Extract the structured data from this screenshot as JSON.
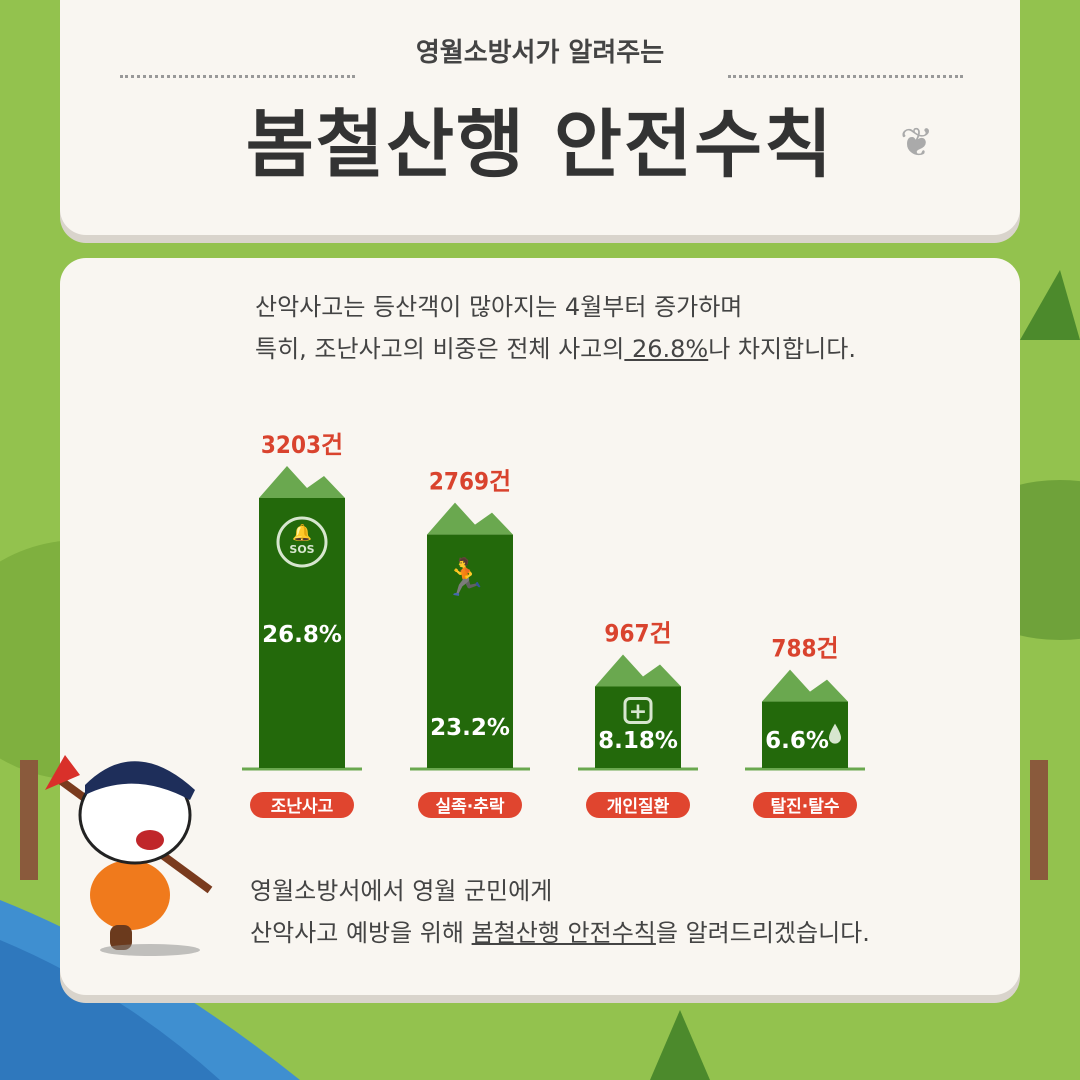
{
  "header": {
    "subtitle": "영월소방서가 알려주는",
    "title": "봄철산행 안전수칙"
  },
  "intro": {
    "line1": "산악사고는 등산객이 많아지는 4월부터 증가하며",
    "line2_pre": "특히, 조난사고의 비중은 전체 사고의",
    "line2_highlight": " 26.8%",
    "line2_post": "나 차지합니다."
  },
  "outro": {
    "line1": "영월소방서에서 영월 군민에게",
    "line2_pre": "산악사고 예방을 위해 ",
    "line2_highlight": "봄철산행 안전수칙",
    "line2_post": "을 알려드리겠습니다."
  },
  "colors": {
    "bar": "#23690b",
    "mountain": "#6aa84f",
    "value_label": "#d9432e",
    "pill": "#e0452f",
    "card": "#f9f6f1"
  },
  "chart_data": {
    "type": "bar",
    "categories": [
      "조난사고",
      "실족·추락",
      "개인질환",
      "탈진·탈수"
    ],
    "values": [
      3203,
      2769,
      967,
      788
    ],
    "value_labels": [
      "3203건",
      "2769건",
      "967건",
      "788건"
    ],
    "percent_labels": [
      "26.8%",
      "23.2%",
      "8.18%",
      "6.6%"
    ],
    "icons": [
      "sos-bell-icon",
      "falling-person-icon",
      "first-aid-icon",
      "water-drop-icon"
    ],
    "icon_text": [
      "SOS",
      "",
      "",
      ""
    ],
    "ylim": [
      0,
      3203
    ],
    "grid": false
  }
}
